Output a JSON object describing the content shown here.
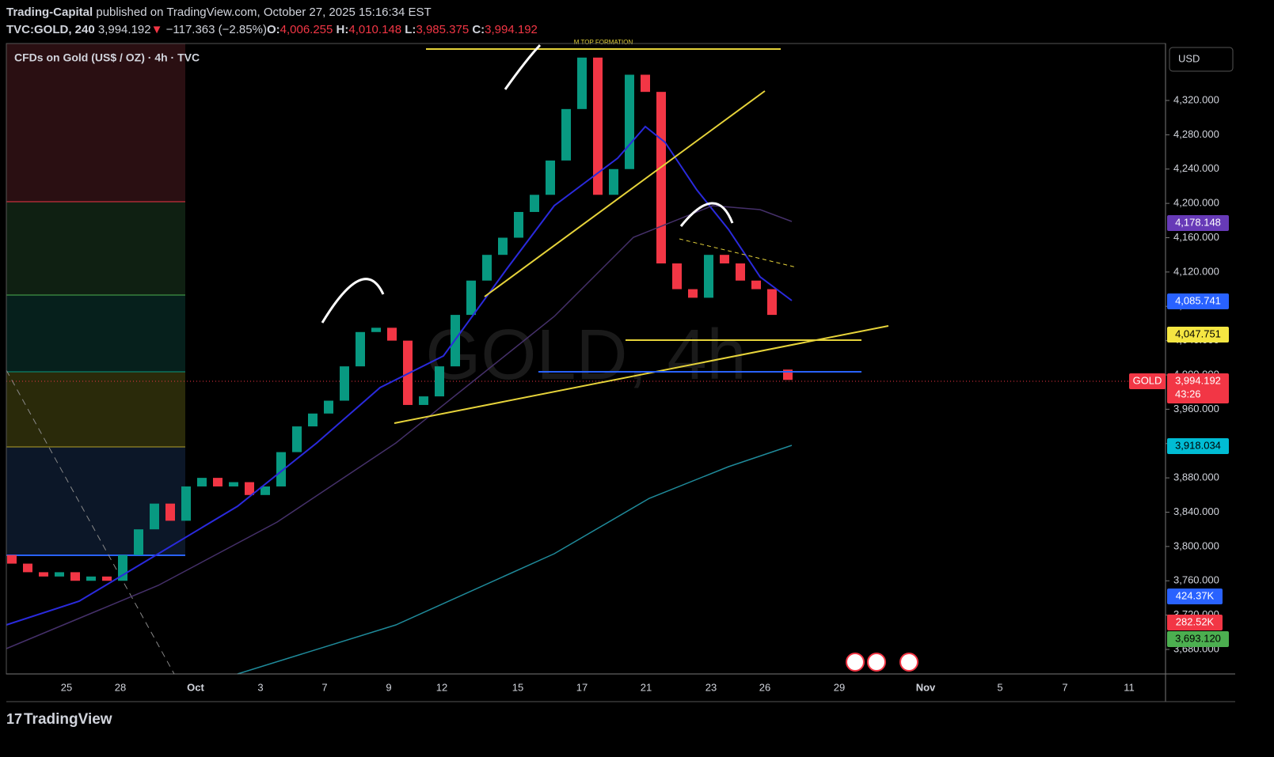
{
  "header": {
    "author": "Trading-Capital",
    "published": "published on TradingView.com, October 27, 2025 15:16:34 EST",
    "symbol": "TVC:GOLD, 240",
    "last": "3,994.192",
    "arrow": "▼",
    "change": "−117.363 (−2.85%)",
    "o_label": "O:",
    "o": "4,006.255",
    "h_label": "H:",
    "h": "4,010.148",
    "l_label": "L:",
    "l": "3,985.375",
    "c_label": "C:",
    "c": "3,994.192"
  },
  "legend": "CFDs on Gold (US$ / OZ) · 4h · TVC",
  "watermark": "GOLD, 4h",
  "annotation": "M TOP FORMATION",
  "currency": "USD",
  "tags": {
    "t1": "4,178.148",
    "t2": "4,085.741",
    "t3": "4,047.751",
    "gold": "GOLD",
    "price": "3,994.192",
    "countdown": "43:26",
    "t4": "3,918.034",
    "vol1": "424.37K",
    "vol2": "282.52K",
    "t5": "3,693.120"
  },
  "time_axis": [
    "25",
    "28",
    "Oct",
    "3",
    "7",
    "9",
    "12",
    "15",
    "17",
    "21",
    "23",
    "26",
    "29",
    "Nov",
    "5",
    "7",
    "11"
  ],
  "footer": "TradingView",
  "chart_data": {
    "type": "candlestick",
    "up_color": "#089981",
    "down_color": "#f23645",
    "ylim": [
      3651.4,
      4386.4
    ],
    "yticks": [
      {
        "value": 3680,
        "label": "3,680.000"
      },
      {
        "value": 3720,
        "label": "3,720.000"
      },
      {
        "value": 3760,
        "label": "3,760.000"
      },
      {
        "value": 3800,
        "label": "3,800.000"
      },
      {
        "value": 3840,
        "label": "3,840.000"
      },
      {
        "value": 3880,
        "label": "3,880.000"
      },
      {
        "value": 3920,
        "label": "3,920.000"
      },
      {
        "value": 3960,
        "label": "3,960.000"
      },
      {
        "value": 4000,
        "label": "4,000.000"
      },
      {
        "value": 4040,
        "label": "4,040.000"
      },
      {
        "value": 4080,
        "label": "4,080.000"
      },
      {
        "value": 4120,
        "label": "4,120.000"
      },
      {
        "value": 4160,
        "label": "4,160.000"
      },
      {
        "value": 4200,
        "label": "4,200.000"
      },
      {
        "value": 4240,
        "label": "4,240.000"
      },
      {
        "value": 4280,
        "label": "4,280.000"
      },
      {
        "value": 4320,
        "label": "4,320.000"
      }
    ],
    "open": [
      3790,
      3780,
      3770,
      3765,
      3770,
      3760,
      3765,
      3760,
      3790,
      3820,
      3850,
      3830,
      3870,
      3880,
      3870,
      3875,
      3860,
      3870,
      3910,
      3940,
      3955,
      3970,
      4010,
      4050,
      4055,
      4040,
      3965,
      3975,
      4010,
      4070,
      4110,
      4140,
      4160,
      4190,
      4210,
      4250,
      4310,
      4370,
      4210,
      4240,
      4350,
      4330,
      4130,
      4100,
      4090,
      4140,
      4130,
      4110,
      4100,
      4006.255
    ],
    "close": [
      3780,
      3770,
      3765,
      3770,
      3760,
      3765,
      3760,
      3790,
      3820,
      3850,
      3830,
      3870,
      3880,
      3870,
      3875,
      3860,
      3870,
      3910,
      3940,
      3955,
      3970,
      4010,
      4050,
      4055,
      4040,
      3965,
      3975,
      4010,
      4070,
      4110,
      4140,
      4160,
      4190,
      4210,
      4250,
      4310,
      4370,
      4210,
      4240,
      4350,
      4330,
      4130,
      4100,
      4090,
      4140,
      4130,
      4110,
      4100,
      4070,
      3994.192
    ]
  }
}
